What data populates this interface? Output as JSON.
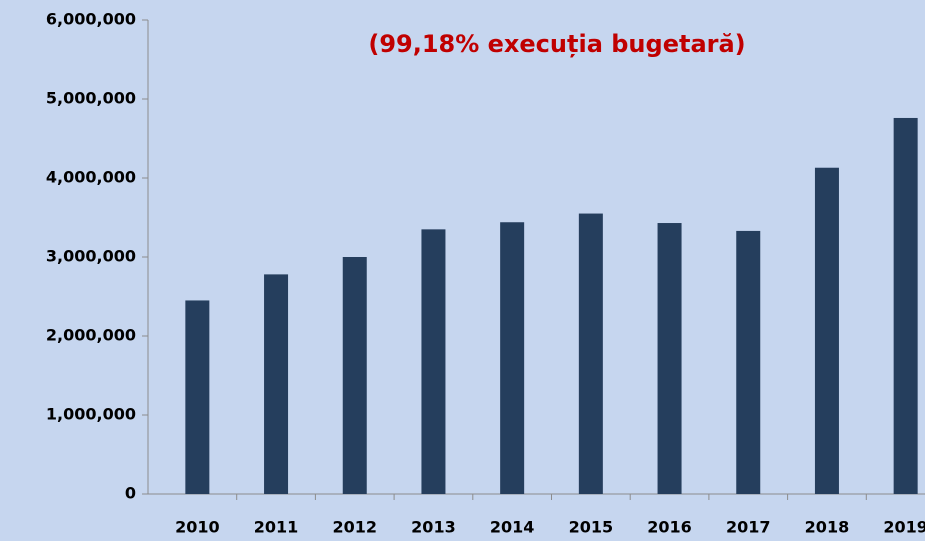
{
  "chart_data": {
    "type": "bar",
    "annotation": "(99,18% execuția bugetară)",
    "categories": [
      "2010",
      "2011",
      "2012",
      "2013",
      "2014",
      "2015",
      "2016",
      "2017",
      "2018",
      "2019"
    ],
    "values": [
      2450000,
      2780000,
      3000000,
      3350000,
      3440000,
      3550000,
      3430000,
      3330000,
      4130000,
      4760000
    ],
    "color": "#253e5d",
    "ylim": [
      0,
      6000000
    ],
    "yticks": [
      0,
      {
        "value": 1000000,
        "label": "1,000,000"
      },
      {
        "value": 2000000,
        "label": "2,000,000"
      },
      {
        "value": 3000000,
        "label": "3,000,000"
      },
      {
        "value": 4000000,
        "label": "4,000,000"
      },
      {
        "value": 5000000,
        "label": "5,000,000"
      },
      {
        "value": 6000000,
        "label": "6,000,000"
      }
    ],
    "grid": false
  }
}
